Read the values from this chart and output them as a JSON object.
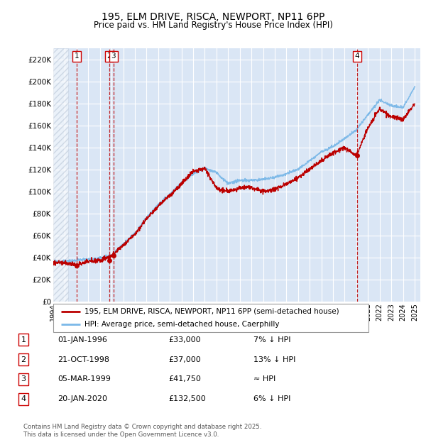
{
  "title1": "195, ELM DRIVE, RISCA, NEWPORT, NP11 6PP",
  "title2": "Price paid vs. HM Land Registry's House Price Index (HPI)",
  "xlim_start": 1994.0,
  "xlim_end": 2025.5,
  "ylim_min": 0,
  "ylim_max": 230000,
  "yticks": [
    0,
    20000,
    40000,
    60000,
    80000,
    100000,
    120000,
    140000,
    160000,
    180000,
    200000,
    220000
  ],
  "ytick_labels": [
    "£0",
    "£20K",
    "£40K",
    "£60K",
    "£80K",
    "£100K",
    "£120K",
    "£140K",
    "£160K",
    "£180K",
    "£200K",
    "£220K"
  ],
  "hpi_color": "#7ab8e8",
  "price_color": "#bb0000",
  "bg_color": "#dae6f5",
  "grid_color": "#ffffff",
  "sale_points": [
    {
      "date_num": 1996.0,
      "price": 33000,
      "label": "1"
    },
    {
      "date_num": 1998.8,
      "price": 37000,
      "label": "2"
    },
    {
      "date_num": 1999.17,
      "price": 41750,
      "label": "3"
    },
    {
      "date_num": 2020.05,
      "price": 132500,
      "label": "4"
    }
  ],
  "legend_line1": "195, ELM DRIVE, RISCA, NEWPORT, NP11 6PP (semi-detached house)",
  "legend_line2": "HPI: Average price, semi-detached house, Caerphilly",
  "table_data": [
    [
      "1",
      "01-JAN-1996",
      "£33,000",
      "7% ↓ HPI"
    ],
    [
      "2",
      "21-OCT-1998",
      "£37,000",
      "13% ↓ HPI"
    ],
    [
      "3",
      "05-MAR-1999",
      "£41,750",
      "≈ HPI"
    ],
    [
      "4",
      "20-JAN-2020",
      "£132,500",
      "6% ↓ HPI"
    ]
  ],
  "footer": "Contains HM Land Registry data © Crown copyright and database right 2025.\nThis data is licensed under the Open Government Licence v3.0.",
  "hpi_keypoints_x": [
    1994,
    1995,
    1996,
    1997,
    1998,
    1999,
    2000,
    2001,
    2002,
    2003,
    2004,
    2005,
    2006,
    2007,
    2008,
    2009,
    2010,
    2011,
    2012,
    2013,
    2014,
    2015,
    2016,
    2017,
    2018,
    2019,
    2020,
    2021,
    2022,
    2023,
    2024,
    2025
  ],
  "hpi_keypoints_y": [
    36000,
    36500,
    37500,
    38500,
    39500,
    42000,
    52000,
    62000,
    76000,
    88000,
    97000,
    108000,
    116000,
    121000,
    117000,
    107000,
    110000,
    110000,
    111000,
    113000,
    116000,
    120000,
    128000,
    136000,
    141000,
    148000,
    156000,
    170000,
    183000,
    178000,
    176000,
    195000
  ],
  "price_keypoints_x": [
    1994,
    1995,
    1996,
    1997,
    1998,
    1999,
    2000,
    2001,
    2002,
    2003,
    2004,
    2005,
    2006,
    2007,
    2008,
    2009,
    2010,
    2011,
    2012,
    2013,
    2014,
    2015,
    2016,
    2017,
    2018,
    2019,
    2020,
    2021,
    2022,
    2023,
    2024,
    2025
  ],
  "price_keypoints_y": [
    35000,
    35500,
    33000,
    36500,
    37000,
    41750,
    51000,
    61000,
    75000,
    87000,
    96000,
    107000,
    118000,
    121000,
    103000,
    100000,
    103000,
    104000,
    100000,
    102000,
    107000,
    112000,
    120000,
    128000,
    135000,
    140000,
    132500,
    158000,
    175000,
    168000,
    165000,
    180000
  ]
}
